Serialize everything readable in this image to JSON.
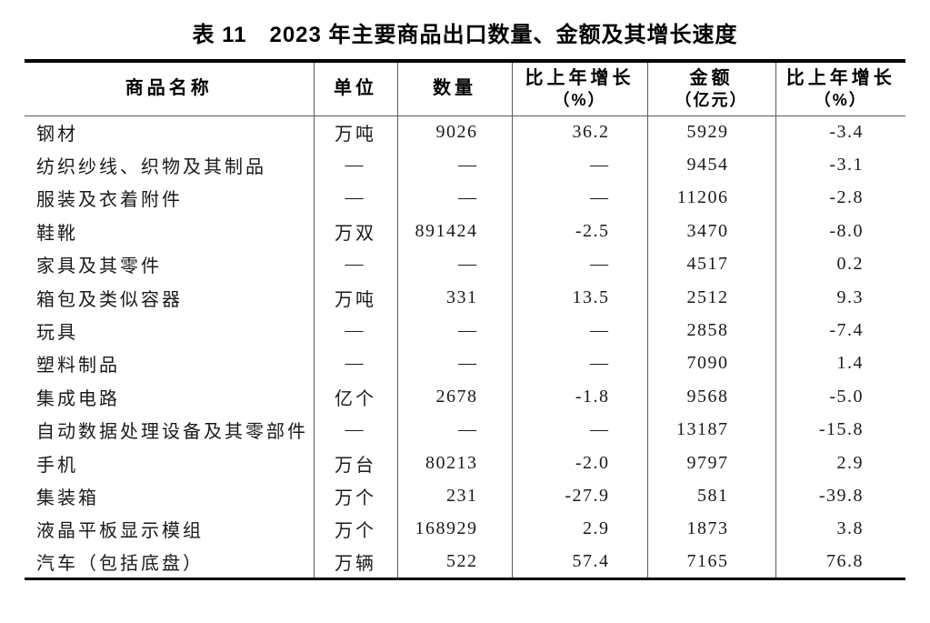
{
  "title": "表 11　2023 年主要商品出口数量、金额及其增长速度",
  "table": {
    "columns": [
      {
        "label": "商品名称",
        "sub": ""
      },
      {
        "label": "单位",
        "sub": ""
      },
      {
        "label": "数量",
        "sub": ""
      },
      {
        "label": "比上年增长",
        "sub": "（%）"
      },
      {
        "label": "金额",
        "sub": "（亿元）"
      },
      {
        "label": "比上年增长",
        "sub": "（%）"
      }
    ],
    "rows": [
      [
        "钢材",
        "万吨",
        "9026",
        "36.2",
        "5929",
        "-3.4"
      ],
      [
        "纺织纱线、织物及其制品",
        "—",
        "—",
        "—",
        "9454",
        "-3.1"
      ],
      [
        "服装及衣着附件",
        "—",
        "—",
        "—",
        "11206",
        "-2.8"
      ],
      [
        "鞋靴",
        "万双",
        "891424",
        "-2.5",
        "3470",
        "-8.0"
      ],
      [
        "家具及其零件",
        "—",
        "—",
        "—",
        "4517",
        "0.2"
      ],
      [
        "箱包及类似容器",
        "万吨",
        "331",
        "13.5",
        "2512",
        "9.3"
      ],
      [
        "玩具",
        "—",
        "—",
        "—",
        "2858",
        "-7.4"
      ],
      [
        "塑料制品",
        "—",
        "—",
        "—",
        "7090",
        "1.4"
      ],
      [
        "集成电路",
        "亿个",
        "2678",
        "-1.8",
        "9568",
        "-5.0"
      ],
      [
        "自动数据处理设备及其零部件",
        "—",
        "—",
        "—",
        "13187",
        "-15.8"
      ],
      [
        "手机",
        "万台",
        "80213",
        "-2.0",
        "9797",
        "2.9"
      ],
      [
        "集装箱",
        "万个",
        "231",
        "-27.9",
        "581",
        "-39.8"
      ],
      [
        "液晶平板显示模组",
        "万个",
        "168929",
        "2.9",
        "1873",
        "3.8"
      ],
      [
        "汽车（包括底盘）",
        "万辆",
        "522",
        "57.4",
        "7165",
        "76.8"
      ]
    ]
  }
}
